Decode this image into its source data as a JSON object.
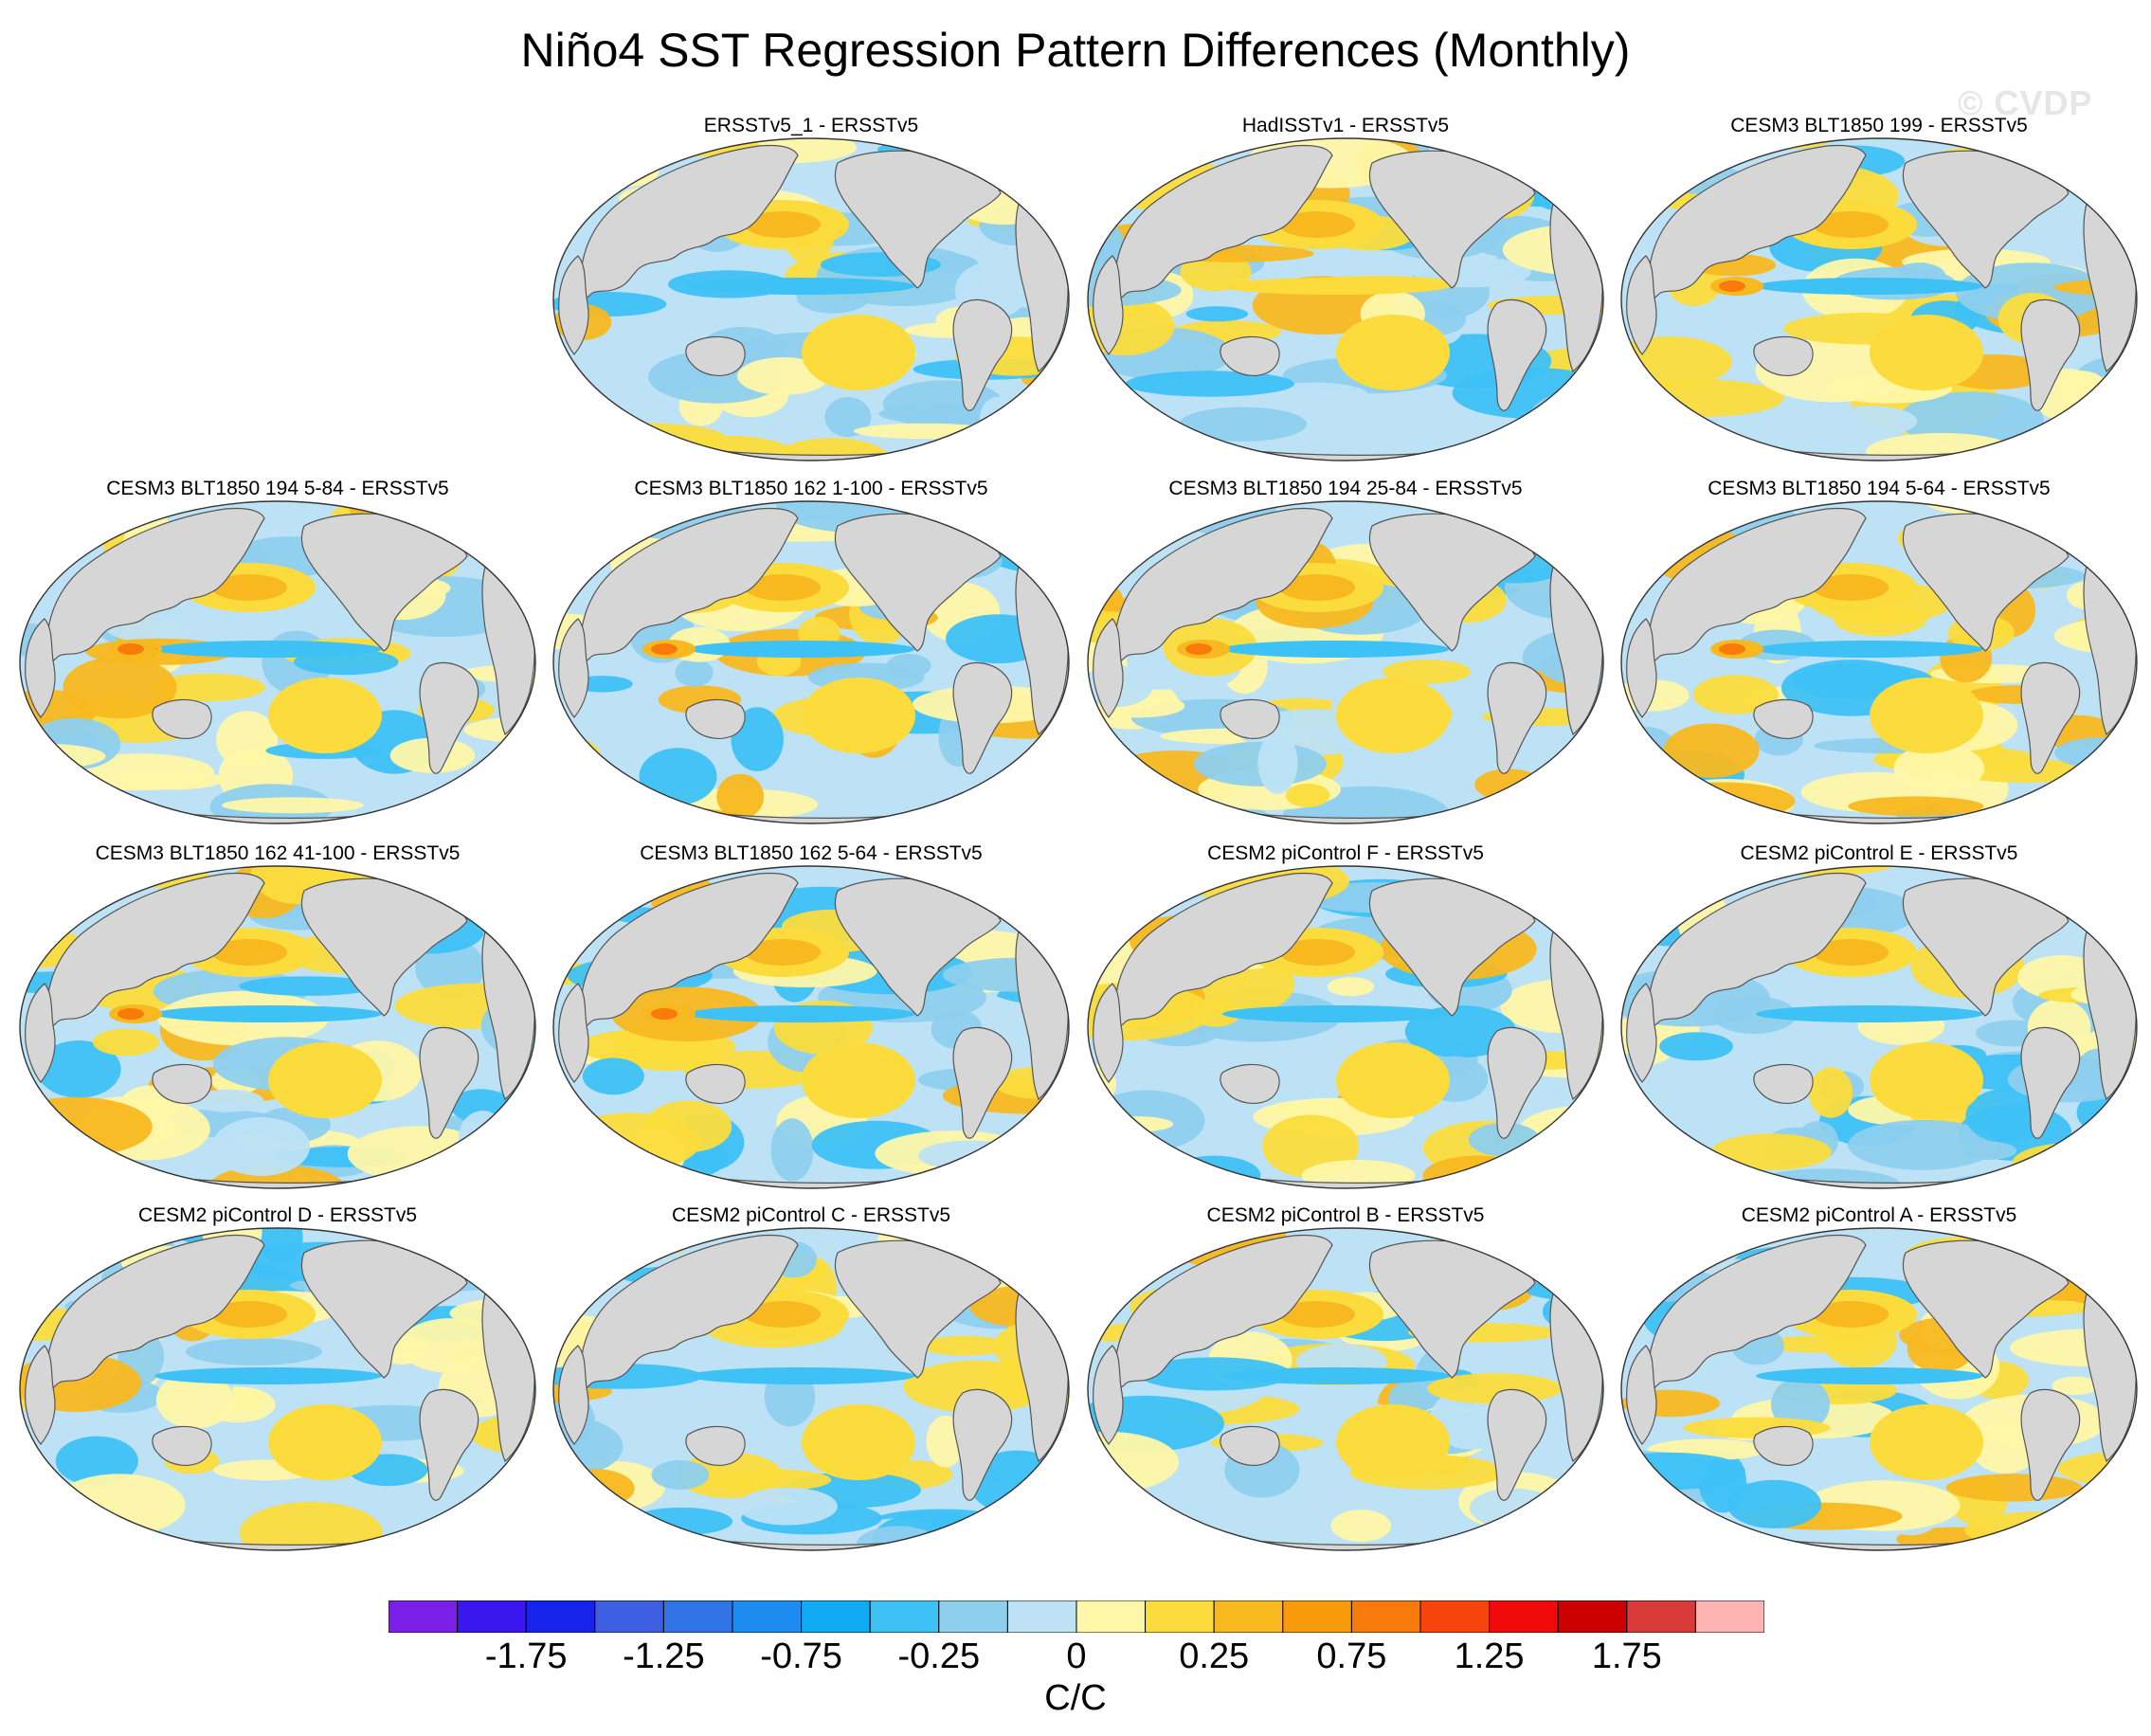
{
  "title": "Niño4 SST Regression Pattern Differences (Monthly)",
  "watermark": "© CVDP",
  "panels": [
    {
      "title": "ERSSTv5_1 - ERSSTv5",
      "variant": 1
    },
    {
      "title": "HadISSTv1 - ERSSTv5",
      "variant": 2
    },
    {
      "title": "CESM3 BLT1850 199 - ERSSTv5",
      "variant": 3
    },
    {
      "title": "CESM3 BLT1850 194 5-84 - ERSSTv5",
      "variant": 4
    },
    {
      "title": "CESM3 BLT1850 162 1-100 - ERSSTv5",
      "variant": 5
    },
    {
      "title": "CESM3 BLT1850 194 25-84 - ERSSTv5",
      "variant": 6
    },
    {
      "title": "CESM3 BLT1850 194 5-64 - ERSSTv5",
      "variant": 7
    },
    {
      "title": "CESM3 BLT1850 162 41-100 - ERSSTv5",
      "variant": 8
    },
    {
      "title": "CESM3 BLT1850 162 5-64 - ERSSTv5",
      "variant": 9
    },
    {
      "title": "CESM2 piControl F - ERSSTv5",
      "variant": 10
    },
    {
      "title": "CESM2 piControl E - ERSSTv5",
      "variant": 11
    },
    {
      "title": "CESM2 piControl D - ERSSTv5",
      "variant": 12
    },
    {
      "title": "CESM2 piControl C - ERSSTv5",
      "variant": 13
    },
    {
      "title": "CESM2 piControl B - ERSSTv5",
      "variant": 14
    },
    {
      "title": "CESM2 piControl A - ERSSTv5",
      "variant": 15
    }
  ],
  "colorbar": {
    "colors": [
      "#7a1fe8",
      "#3a17f0",
      "#1623ea",
      "#3d5ee0",
      "#2f73e6",
      "#1c8cf0",
      "#10aaf5",
      "#3ec1f5",
      "#8ecfee",
      "#bde2f5",
      "#fff7a8",
      "#fbdc3c",
      "#f8b820",
      "#f79a0c",
      "#f77a0a",
      "#f6440c",
      "#f00a0a",
      "#cc0000",
      "#d93a3a",
      "#ffb4b4"
    ],
    "tick_labels": [
      "-1.75",
      "-1.25",
      "-0.75",
      "-0.25",
      "0",
      "0.25",
      "0.75",
      "1.25",
      "1.75"
    ],
    "units": "C/C"
  },
  "colors": {
    "land": "#d6d6d6",
    "coast": "#555555",
    "pos1": "#fff7a8",
    "pos2": "#fbdc3c",
    "pos3": "#f8b820",
    "pos4": "#f77a0a",
    "neg1": "#bde2f5",
    "neg2": "#8ecfee",
    "neg3": "#3ec1f5"
  }
}
